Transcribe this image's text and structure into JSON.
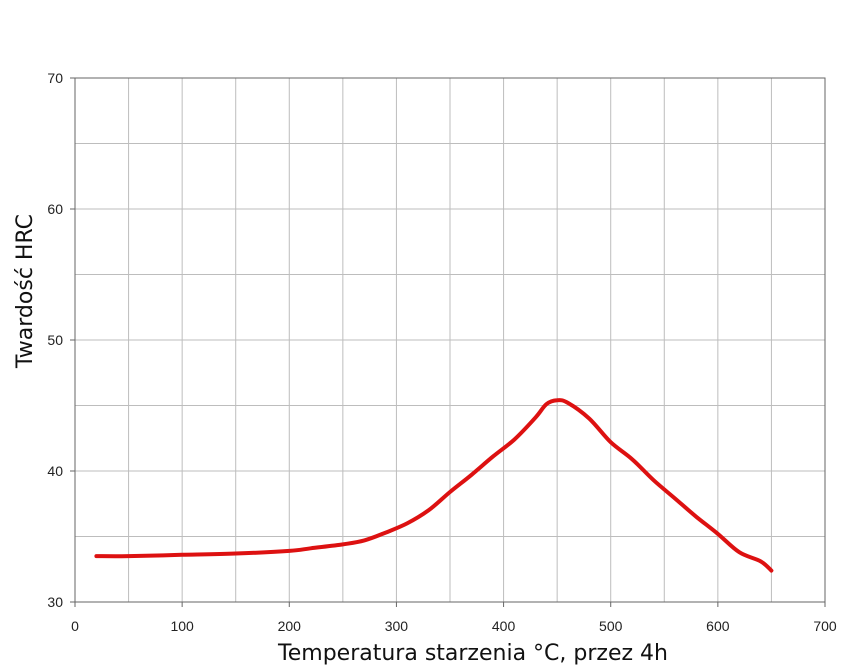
{
  "chart_data": {
    "type": "line",
    "title": "",
    "xlabel": "Temperatura starzenia °C, przez 4h",
    "ylabel": "Twardość HRC",
    "xlim": [
      0,
      700
    ],
    "ylim": [
      30,
      70
    ],
    "x_ticks": [
      0,
      100,
      200,
      300,
      400,
      500,
      600,
      700
    ],
    "y_ticks": [
      30,
      40,
      50,
      60,
      70
    ],
    "x_minor_step": 50,
    "y_minor_step": 5,
    "grid": true,
    "series": [
      {
        "color": "#dd1111",
        "x": [
          20,
          50,
          100,
          150,
          200,
          220,
          250,
          270,
          290,
          310,
          330,
          350,
          370,
          390,
          410,
          430,
          440,
          450,
          460,
          480,
          500,
          520,
          540,
          560,
          580,
          600,
          620,
          640,
          650
        ],
        "y": [
          33.5,
          33.5,
          33.6,
          33.7,
          33.9,
          34.1,
          34.4,
          34.7,
          35.3,
          36.0,
          37.0,
          38.4,
          39.7,
          41.1,
          42.4,
          44.1,
          45.1,
          45.4,
          45.2,
          44.0,
          42.2,
          40.9,
          39.3,
          37.9,
          36.5,
          35.2,
          33.8,
          33.1,
          32.4
        ]
      }
    ]
  }
}
